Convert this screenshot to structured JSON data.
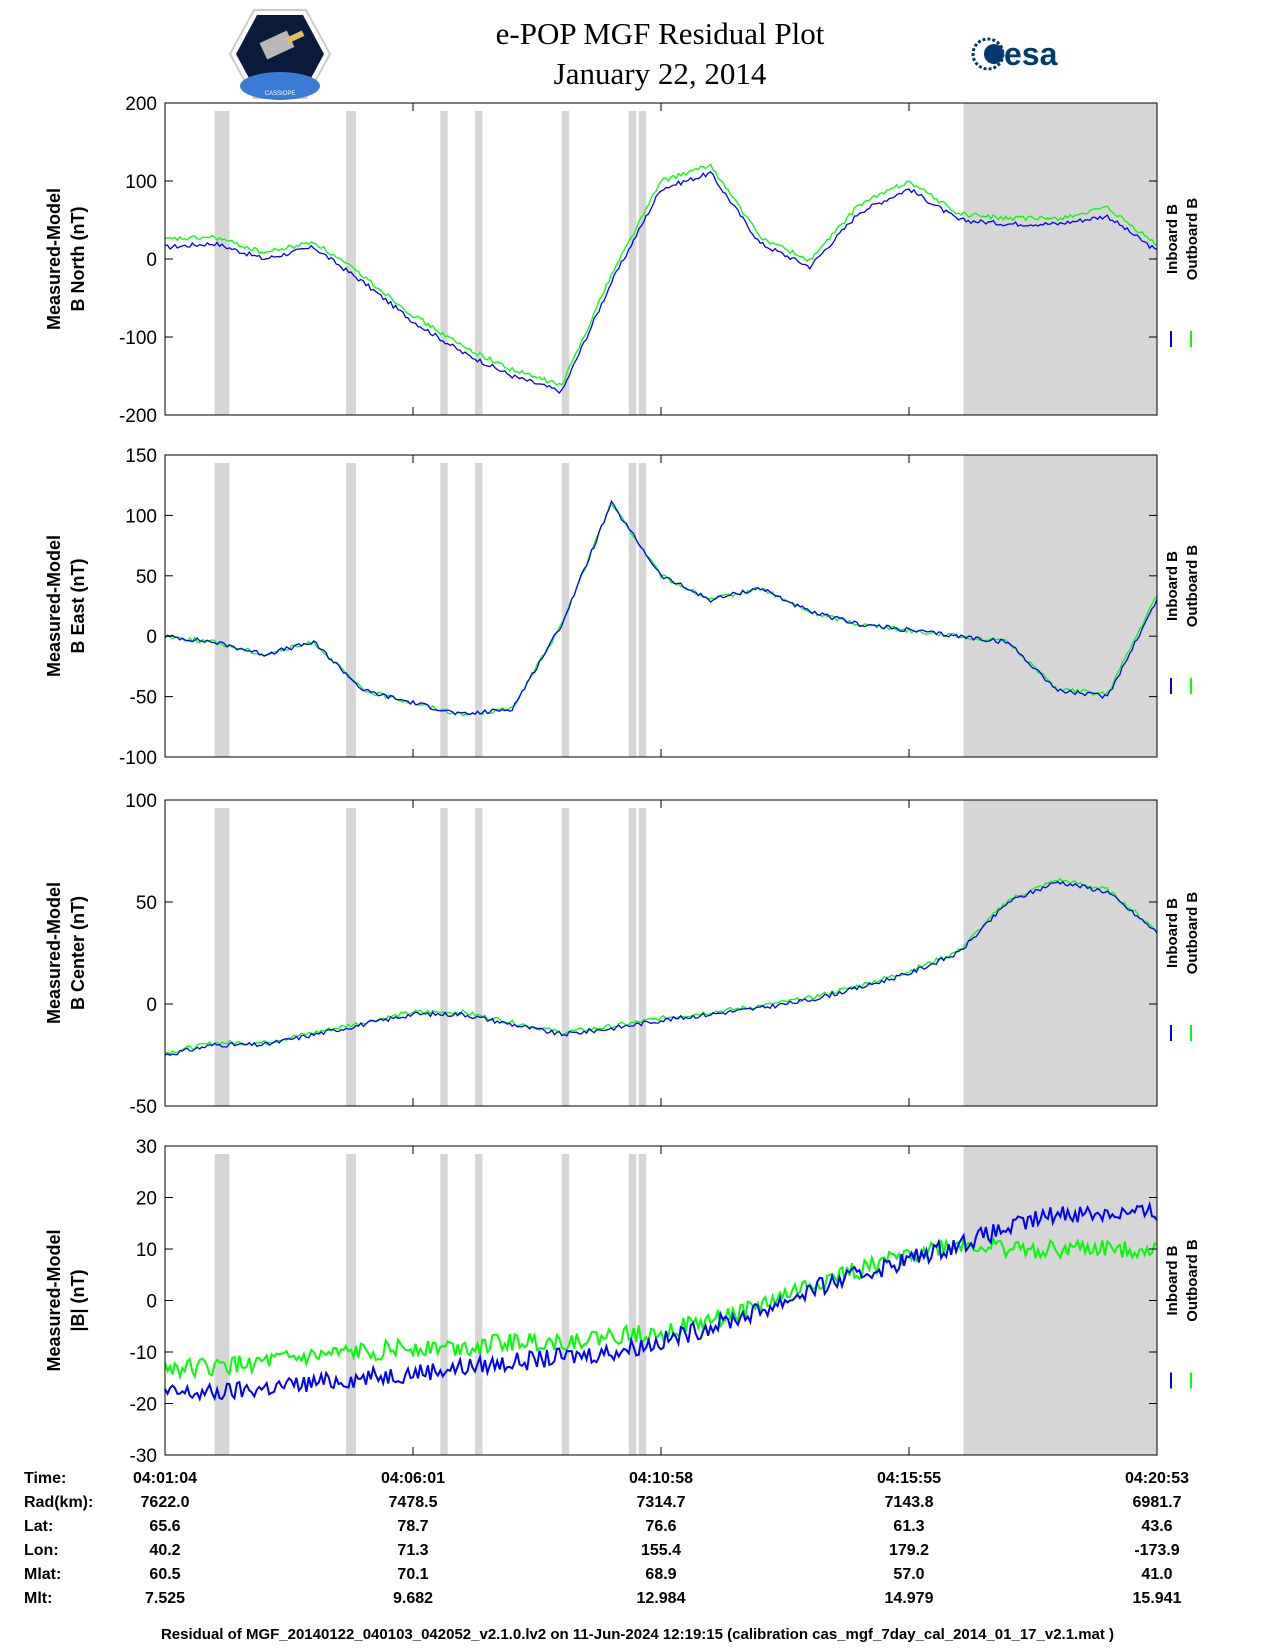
{
  "header": {
    "title_line1": "e-POP MGF Residual Plot",
    "title_line2": "January 22, 2014",
    "left_logo": "cassiope-logo",
    "left_logo_text": "CASSIOPE",
    "right_logo": "esa-logo",
    "right_logo_text": "esa"
  },
  "colors": {
    "inboard": "#0000ff",
    "outboard": "#00ff00",
    "shade": "#d6d6d6"
  },
  "chart_data": [
    {
      "type": "line",
      "ylabel_line1": "Measured-Model",
      "ylabel_line2": "B North (nT)",
      "ylim": [
        -200,
        200
      ],
      "yticks": [
        -200,
        -100,
        0,
        100,
        200
      ],
      "legend": [
        "Inboard B",
        "Outboard B"
      ],
      "x": [
        0,
        1,
        2,
        3,
        4,
        5,
        6,
        7,
        8,
        9,
        10,
        11,
        12,
        13,
        14,
        15,
        16,
        17,
        18,
        19,
        20
      ],
      "series": [
        {
          "name": "Inboard B",
          "values": [
            15,
            20,
            0,
            15,
            -30,
            -80,
            -120,
            -150,
            -170,
            -30,
            90,
            110,
            20,
            -10,
            60,
            90,
            50,
            45,
            45,
            55,
            10
          ]
        },
        {
          "name": "Outboard B",
          "values": [
            25,
            28,
            8,
            22,
            -22,
            -72,
            -112,
            -142,
            -162,
            -20,
            100,
            120,
            28,
            -2,
            70,
            100,
            58,
            52,
            52,
            65,
            18
          ]
        }
      ]
    },
    {
      "type": "line",
      "ylabel_line1": "Measured-Model",
      "ylabel_line2": "B East (nT)",
      "ylim": [
        -100,
        150
      ],
      "yticks": [
        -100,
        -50,
        0,
        50,
        100,
        150
      ],
      "legend": [
        "Inboard B",
        "Outboard B"
      ],
      "x": [
        0,
        1,
        2,
        3,
        4,
        5,
        6,
        7,
        8,
        9,
        10,
        11,
        12,
        13,
        14,
        15,
        16,
        17,
        18,
        19,
        20
      ],
      "series": [
        {
          "name": "Inboard B",
          "values": [
            0,
            -5,
            -15,
            -5,
            -45,
            -55,
            -65,
            -60,
            10,
            110,
            50,
            30,
            40,
            20,
            10,
            5,
            0,
            -5,
            -45,
            -50,
            30
          ]
        },
        {
          "name": "Outboard B",
          "values": [
            0,
            -5,
            -15,
            -5,
            -45,
            -55,
            -65,
            -60,
            10,
            110,
            50,
            30,
            40,
            20,
            10,
            5,
            0,
            -5,
            -44,
            -48,
            34
          ]
        }
      ]
    },
    {
      "type": "line",
      "ylabel_line1": "Measured-Model",
      "ylabel_line2": "B Center (nT)",
      "ylim": [
        -50,
        100
      ],
      "yticks": [
        -50,
        0,
        50,
        100
      ],
      "legend": [
        "Inboard B",
        "Outboard B"
      ],
      "x": [
        0,
        1,
        2,
        3,
        4,
        5,
        6,
        7,
        8,
        9,
        10,
        11,
        12,
        13,
        14,
        15,
        16,
        17,
        18,
        19,
        20
      ],
      "series": [
        {
          "name": "Inboard B",
          "values": [
            -25,
            -20,
            -20,
            -15,
            -10,
            -5,
            -5,
            -10,
            -15,
            -12,
            -8,
            -5,
            -2,
            2,
            8,
            15,
            25,
            50,
            60,
            55,
            35
          ]
        },
        {
          "name": "Outboard B",
          "values": [
            -24,
            -19,
            -19,
            -14,
            -9,
            -4,
            -4,
            -9,
            -14,
            -11,
            -7,
            -4,
            -1,
            3,
            9,
            16,
            26,
            51,
            61,
            56,
            36
          ]
        }
      ]
    },
    {
      "type": "line",
      "ylabel_line1": "Measured-Model",
      "ylabel_line2": "|B| (nT)",
      "ylim": [
        -30,
        30
      ],
      "yticks": [
        -30,
        -20,
        -10,
        0,
        10,
        20,
        30
      ],
      "legend": [
        "Inboard B",
        "Outboard B"
      ],
      "x": [
        0,
        1,
        2,
        3,
        4,
        5,
        6,
        7,
        8,
        9,
        10,
        11,
        12,
        13,
        14,
        15,
        16,
        17,
        18,
        19,
        20
      ],
      "series": [
        {
          "name": "Inboard B",
          "values": [
            -18,
            -18,
            -17,
            -16,
            -15,
            -14,
            -13,
            -12,
            -11,
            -10,
            -8,
            -5,
            -2,
            2,
            5,
            8,
            11,
            14,
            17,
            17,
            17
          ]
        },
        {
          "name": "Outboard B",
          "values": [
            -13,
            -13,
            -12,
            -11,
            -10,
            -9,
            -9,
            -8,
            -8,
            -7,
            -6,
            -4,
            -1,
            3,
            6,
            9,
            11,
            10,
            10,
            10,
            10
          ]
        }
      ]
    }
  ],
  "shaded_spans": [
    [
      1.0,
      1.3
    ],
    [
      3.65,
      3.85
    ],
    [
      5.55,
      5.7
    ],
    [
      6.25,
      6.4
    ],
    [
      8.0,
      8.15
    ],
    [
      9.35,
      9.5
    ],
    [
      9.55,
      9.7
    ],
    [
      16.1,
      20
    ]
  ],
  "table": {
    "row_labels": [
      "Time:",
      "Rad(km):",
      "Lat:",
      "Lon:",
      "Mlat:",
      "Mlt:"
    ],
    "columns": [
      [
        "04:01:04",
        "7622.0",
        "65.6",
        "40.2",
        "60.5",
        "7.525"
      ],
      [
        "04:06:01",
        "7478.5",
        "78.7",
        "71.3",
        "70.1",
        "9.682"
      ],
      [
        "04:10:58",
        "7314.7",
        "76.6",
        "155.4",
        "68.9",
        "12.984"
      ],
      [
        "04:15:55",
        "7143.8",
        "61.3",
        "179.2",
        "57.0",
        "14.979"
      ],
      [
        "04:20:53",
        "6981.7",
        "43.6",
        "-173.9",
        "41.0",
        "15.941"
      ]
    ]
  },
  "footer": "Residual of MGF_20140122_040103_042052_v2.1.0.lv2 on 11-Jun-2024 12:19:15 (calibration cas_mgf_7day_cal_2014_01_17_v2.1.mat )"
}
